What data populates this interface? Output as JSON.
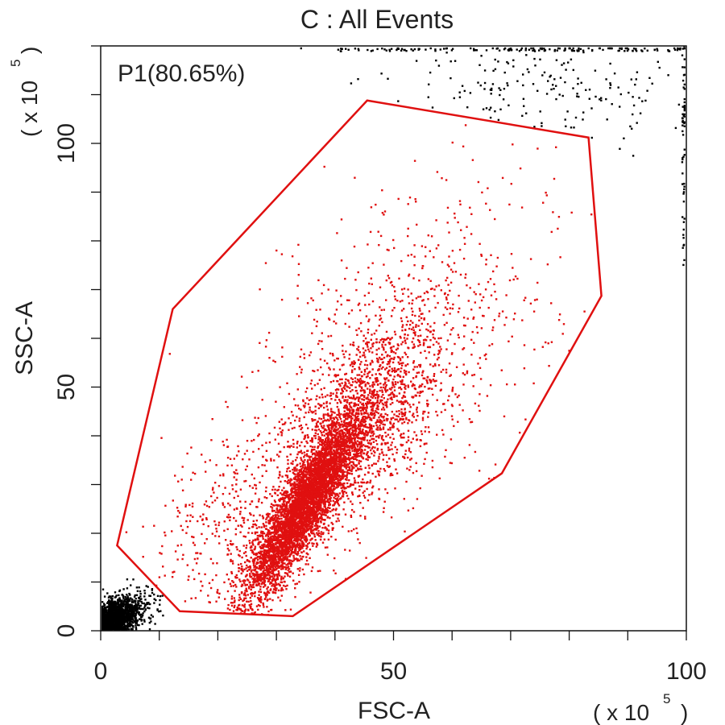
{
  "chart_data": {
    "type": "scatter",
    "title": "C : All Events",
    "xlabel": "FSC-A",
    "ylabel": "SSC-A",
    "x_scale_label": "( x 10",
    "y_scale_label": "( x 10",
    "scale_exponent": "5",
    "xlim": [
      0,
      100
    ],
    "ylim": [
      0,
      120
    ],
    "x_major_ticks": [
      {
        "value": 0,
        "label": "0"
      },
      {
        "value": 50,
        "label": "50"
      },
      {
        "value": 100,
        "label": "100"
      }
    ],
    "y_major_ticks": [
      {
        "value": 0,
        "label": "0"
      },
      {
        "value": 50,
        "label": "50"
      },
      {
        "value": 100,
        "label": "100"
      }
    ],
    "minor_tick_step": 10,
    "grid": false,
    "gate": {
      "label": "P1(80.65%)",
      "color": "#e01010",
      "polygon": [
        [
          2.8,
          17.5
        ],
        [
          12.3,
          66.0
        ],
        [
          45.5,
          108.8
        ],
        [
          83.3,
          101.2
        ],
        [
          85.5,
          68.7
        ],
        [
          68.5,
          32.3
        ],
        [
          32.8,
          3.0
        ],
        [
          13.5,
          4.0
        ]
      ]
    },
    "series": [
      {
        "color": "#e01010",
        "clusters": [
          {
            "cx": 35.0,
            "cy": 26.0,
            "sx": 5.0,
            "sy": 9.5,
            "rho": 0.88,
            "n": 5200
          },
          {
            "cx": 45.0,
            "cy": 44.0,
            "sx": 7.0,
            "sy": 11.0,
            "rho": 0.6,
            "n": 1400
          },
          {
            "cx": 50.0,
            "cy": 55.0,
            "sx": 14.0,
            "sy": 20.0,
            "rho": 0.55,
            "n": 900
          },
          {
            "cx": 25.0,
            "cy": 22.0,
            "sx": 8.0,
            "sy": 10.0,
            "rho": 0.3,
            "n": 450
          }
        ]
      },
      {
        "color": "#000000",
        "clusters": [
          {
            "cx": 2.5,
            "cy": 2.5,
            "sx": 1.8,
            "sy": 1.8,
            "rho": 0.3,
            "n": 1500
          },
          {
            "cx": 6.0,
            "cy": 5.0,
            "sx": 2.5,
            "sy": 2.5,
            "rho": 0.2,
            "n": 200
          },
          {
            "cx": 78.0,
            "cy": 112.0,
            "sx": 14.0,
            "sy": 8.0,
            "rho": 0.1,
            "n": 260
          }
        ],
        "edge_points": {
          "y": 119.5,
          "x_min": 40,
          "x_max": 100,
          "n": 120
        },
        "right_edge_points": {
          "x": 99.7,
          "y_min": 75,
          "y_max": 120,
          "n": 40
        }
      }
    ]
  }
}
